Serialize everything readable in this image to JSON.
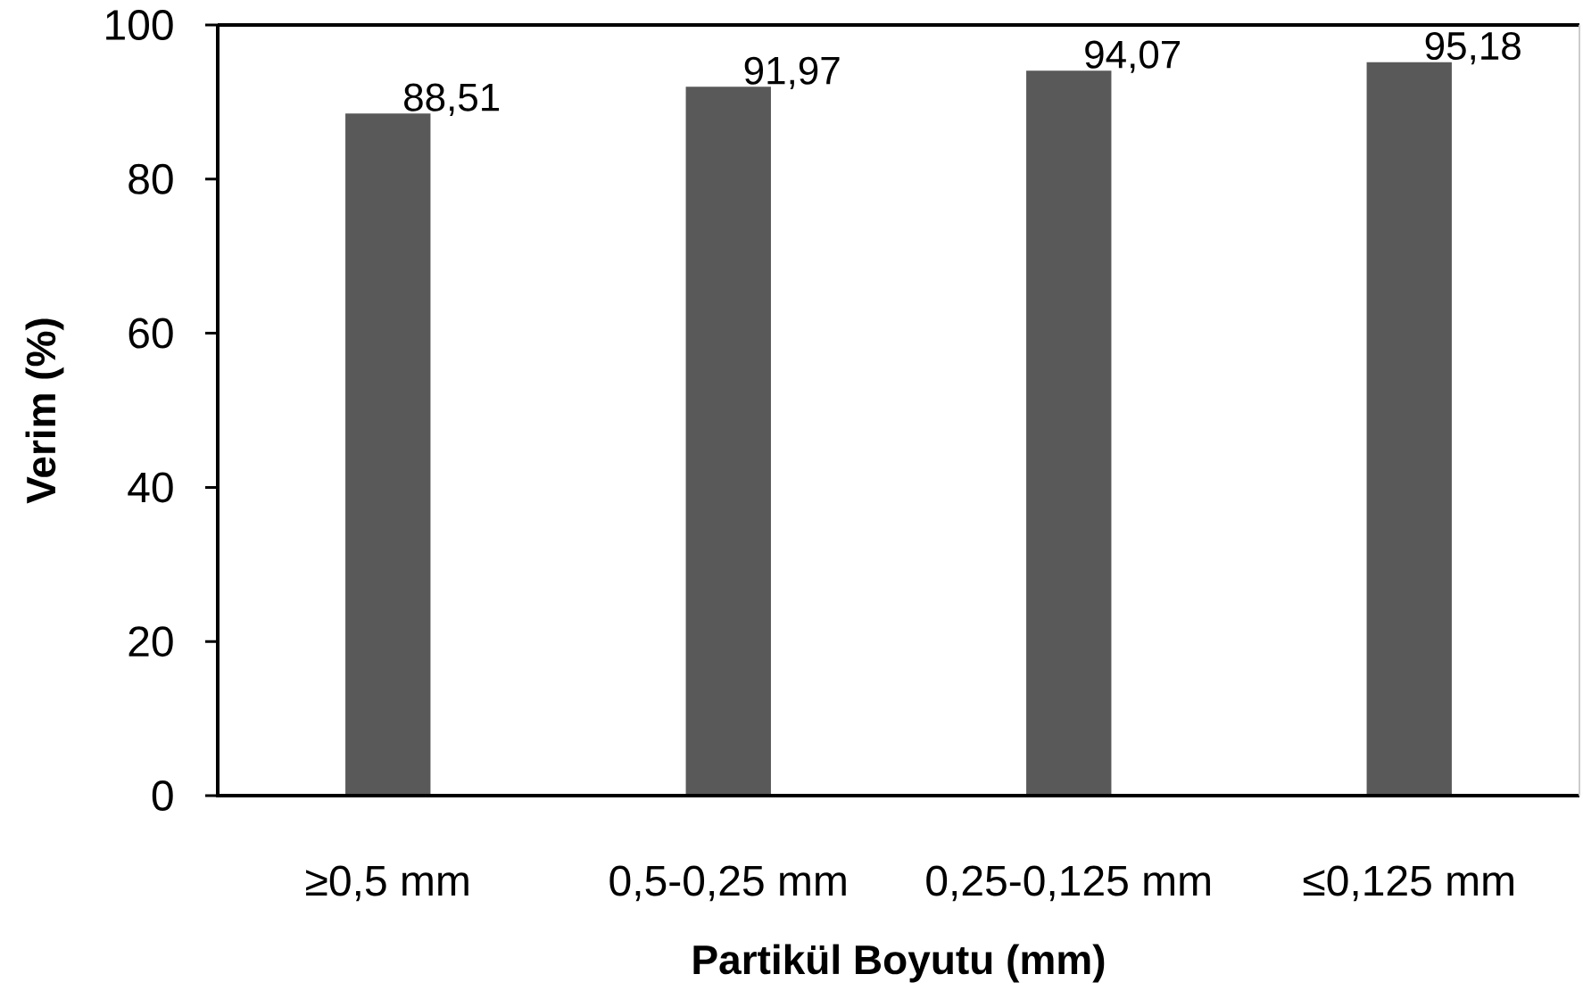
{
  "chart_data": {
    "type": "bar",
    "xlabel": "Partikül Boyutu (mm)",
    "ylabel": "Verim (%)",
    "categories": [
      "≥0,5 mm",
      "0,5-0,25 mm",
      "0,25-0,125 mm",
      "≤0,125 mm"
    ],
    "values": [
      88.51,
      91.97,
      94.07,
      95.18
    ],
    "value_labels": [
      "88,51",
      "91,97",
      "94,07",
      "95,18"
    ],
    "color": "#595959",
    "ylim": [
      0,
      100
    ],
    "yticks": [
      0,
      20,
      40,
      60,
      80,
      100
    ]
  }
}
